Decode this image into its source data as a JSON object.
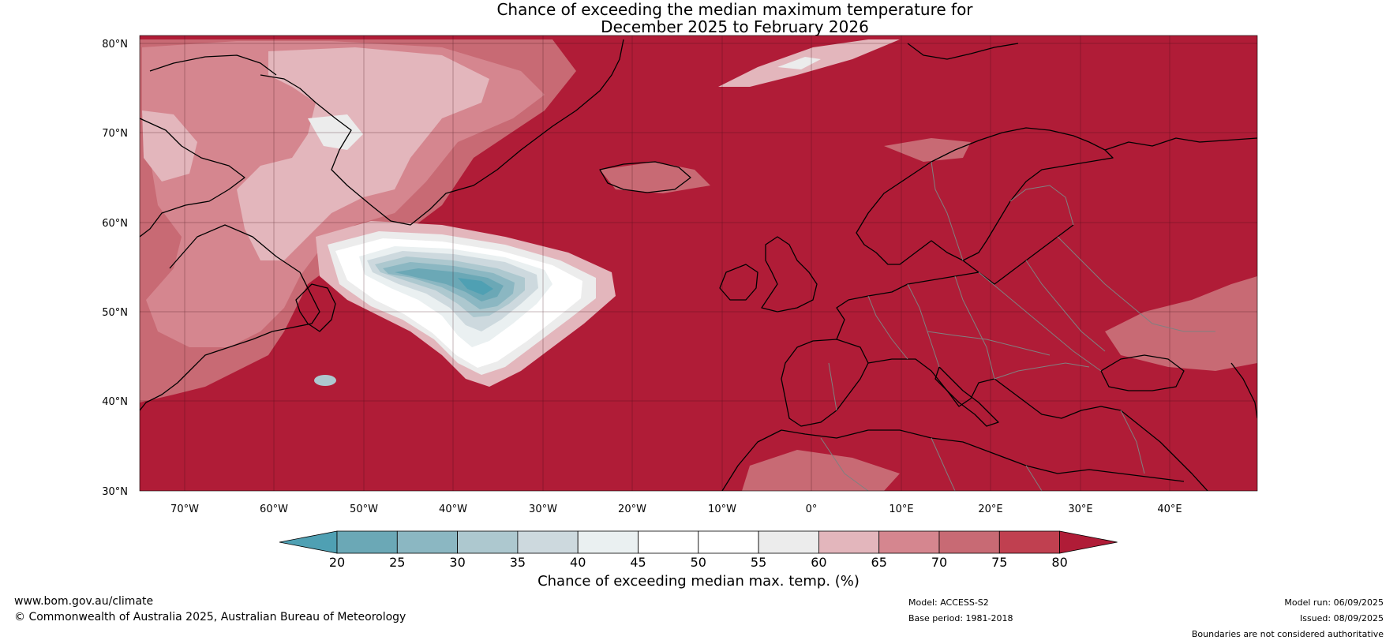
{
  "title": {
    "line1": "Chance of exceeding the median maximum temperature for",
    "line2": "December 2025 to February 2026"
  },
  "map": {
    "lat_labels": [
      "80°N",
      "70°N",
      "60°N",
      "50°N",
      "40°N",
      "30°N"
    ],
    "lon_labels": [
      "70°W",
      "60°W",
      "50°W",
      "40°W",
      "30°W",
      "20°W",
      "10°W",
      "0°",
      "10°E",
      "20°E",
      "30°E",
      "40°E"
    ],
    "colors": {
      "dominant": "#b01c37",
      "coastline": "#000000",
      "borders": "#808080",
      "gridline": "#3a0a12"
    }
  },
  "colorbar": {
    "ticks": [
      "20",
      "25",
      "30",
      "35",
      "40",
      "45",
      "50",
      "55",
      "60",
      "65",
      "70",
      "75",
      "80"
    ],
    "colors": [
      "#4fa0b3",
      "#6ba8b6",
      "#8bb7c2",
      "#adc8cf",
      "#cdd9de",
      "#eaf0f1",
      "#ffffff",
      "#ffffff",
      "#ececec",
      "#e3b6bc",
      "#d5868f",
      "#c86a74",
      "#c04050",
      "#b01c37"
    ],
    "label": "Chance of exceeding median max. temp. (%)"
  },
  "footer": {
    "website": "www.bom.gov.au/climate",
    "copyright": "© Commonwealth of Australia 2025, Australian Bureau of Meteorology",
    "model": "Model: ACCESS-S2",
    "base_period": "Base period: 1981-2018",
    "model_run": "Model run: 06/09/2025",
    "issued": "Issued: 08/09/2025",
    "disclaimer": "Boundaries are not considered authoritative"
  }
}
